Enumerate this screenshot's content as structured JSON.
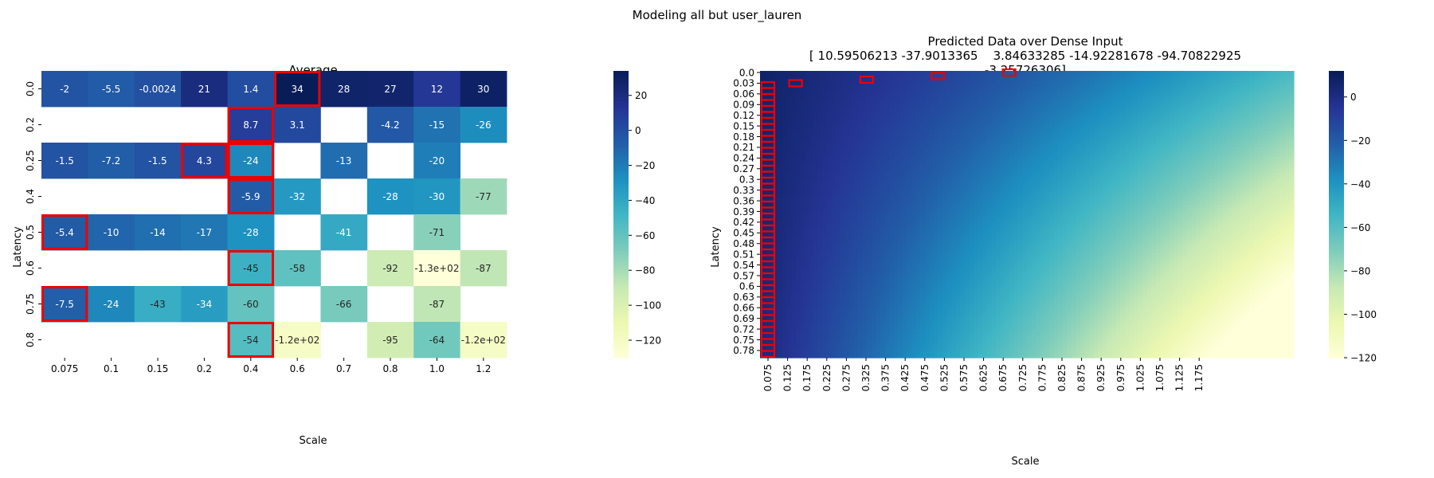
{
  "suptitle": "Modeling all but user_lauren",
  "chart_data": [
    {
      "type": "heatmap",
      "title": "Average",
      "xlabel": "Scale",
      "ylabel": "Latency",
      "x_categories": [
        "0.075",
        "0.1",
        "0.15",
        "0.2",
        "0.4",
        "0.6",
        "0.7",
        "0.8",
        "1.0",
        "1.2"
      ],
      "y_categories": [
        "0.0",
        "0.2",
        "0.25",
        "0.4",
        "0.5",
        "0.6",
        "0.75",
        "0.8"
      ],
      "values": [
        [
          -2,
          -5.5,
          -0.0024,
          21,
          1.4,
          34,
          28,
          27,
          12,
          30
        ],
        [
          null,
          null,
          null,
          null,
          8.7,
          3.1,
          null,
          -4.2,
          -15,
          -26
        ],
        [
          -1.5,
          -7.2,
          -1.5,
          4.3,
          -24,
          null,
          -13,
          null,
          -20,
          null
        ],
        [
          null,
          null,
          null,
          null,
          -5.9,
          -32,
          null,
          -28,
          -30,
          -77
        ],
        [
          -5.4,
          -10,
          -14,
          -17,
          -28,
          null,
          -41,
          null,
          -71,
          null
        ],
        [
          null,
          null,
          null,
          null,
          -45,
          -58,
          null,
          -92,
          -130,
          -87
        ],
        [
          -7.5,
          -24,
          -43,
          -34,
          -60,
          null,
          -66,
          null,
          -87,
          null
        ],
        [
          null,
          null,
          null,
          null,
          -54,
          -120,
          null,
          -95,
          -64,
          -120
        ]
      ],
      "labels": [
        [
          "-2",
          "-5.5",
          "-0.0024",
          "21",
          "1.4",
          "34",
          "28",
          "27",
          "12",
          "30"
        ],
        [
          "",
          "",
          "",
          "",
          "8.7",
          "3.1",
          "",
          "-4.2",
          "-15",
          "-26"
        ],
        [
          "-1.5",
          "-7.2",
          "-1.5",
          "4.3",
          "-24",
          "",
          "-13",
          "",
          "-20",
          ""
        ],
        [
          "",
          "",
          "",
          "",
          "-5.9",
          "-32",
          "",
          "-28",
          "-30",
          "-77"
        ],
        [
          "-5.4",
          "-10",
          "-14",
          "-17",
          "-28",
          "",
          "-41",
          "",
          "-71",
          ""
        ],
        [
          "",
          "",
          "",
          "",
          "-45",
          "-58",
          "",
          "-92",
          "-1.3e+02",
          "-87"
        ],
        [
          "-7.5",
          "-24",
          "-43",
          "-34",
          "-60",
          "",
          "-66",
          "",
          "-87",
          ""
        ],
        [
          "",
          "",
          "",
          "",
          "-54",
          "-1.2e+02",
          "",
          "-95",
          "-64",
          "-1.2e+02"
        ]
      ],
      "highlighted_cells": [
        [
          0,
          5
        ],
        [
          1,
          4
        ],
        [
          2,
          3
        ],
        [
          2,
          4
        ],
        [
          3,
          4
        ],
        [
          4,
          0
        ],
        [
          5,
          4
        ],
        [
          6,
          0
        ],
        [
          7,
          4
        ]
      ],
      "colorbar": {
        "vmin": -130,
        "vmax": 34,
        "ticks": [
          "20",
          "0",
          "−20",
          "−40",
          "−60",
          "−80",
          "−100",
          "−120"
        ],
        "tick_values": [
          20,
          0,
          -20,
          -40,
          -60,
          -80,
          -100,
          -120
        ]
      },
      "colormap": "YlGnBu",
      "grid": false
    },
    {
      "type": "heatmap",
      "title": "Predicted Data over Dense Input",
      "title_lines": [
        "Predicted Data over Dense Input",
        "[ 10.59506213 -37.9013365    3.84633285 -14.92281678 -94.70822925",
        "-3.25726306]"
      ],
      "xlabel": "Scale",
      "ylabel": "Latency",
      "x_tick_labels": [
        "0.075",
        "0.125",
        "0.175",
        "0.225",
        "0.275",
        "0.325",
        "0.375",
        "0.425",
        "0.475",
        "0.525",
        "0.575",
        "0.625",
        "0.675",
        "0.725",
        "0.775",
        "0.825",
        "0.875",
        "0.925",
        "0.975",
        "1.025",
        "1.075",
        "1.125",
        "1.175"
      ],
      "y_tick_labels": [
        "0.0",
        "0.03",
        "0.06",
        "0.09",
        "0.12",
        "0.15",
        "0.18",
        "0.21",
        "0.24",
        "0.27",
        "0.3",
        "0.33",
        "0.36",
        "0.39",
        "0.42",
        "0.45",
        "0.48",
        "0.51",
        "0.54",
        "0.57",
        "0.6",
        "0.63",
        "0.66",
        "0.69",
        "0.72",
        "0.75",
        "0.78"
      ],
      "x_range": [
        0.075,
        1.2
      ],
      "y_range": [
        0.0,
        0.8
      ],
      "coefficients": [
        10.59506213,
        -37.9013365,
        3.84633285,
        -14.92281678,
        -94.70822925,
        -3.25726306
      ],
      "colorbar": {
        "vmin": -120,
        "vmax": 12,
        "ticks": [
          "0",
          "−20",
          "−40",
          "−60",
          "−80",
          "−100",
          "−120"
        ],
        "tick_values": [
          0,
          -20,
          -40,
          -60,
          -80,
          -100,
          -120
        ]
      },
      "colormap": "YlGnBu",
      "highlighted_points": [
        [
          0.15,
          0.03
        ],
        [
          0.3,
          0.02
        ],
        [
          0.45,
          0.01
        ],
        [
          0.6,
          0.0
        ]
      ],
      "highlighted_column": 0.075,
      "grid": false
    }
  ]
}
